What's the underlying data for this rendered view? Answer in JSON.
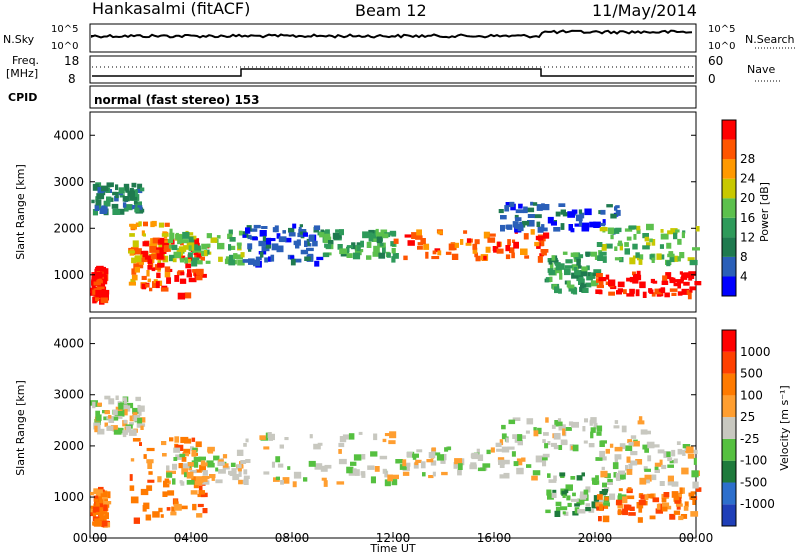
{
  "header": {
    "station": "Hankasalmi (fitACF)",
    "beam": "Beam 12",
    "date": "11/May/2014"
  },
  "noise_panel": {
    "left_label": "N.Sky",
    "right_label": "N.Search",
    "left_ticks": [
      "10^5",
      "10^0"
    ],
    "right_ticks": [
      "10^5",
      "10^0"
    ]
  },
  "freq_panel": {
    "left_label_line1": "Freq.",
    "left_label_line2": "[MHz]",
    "left_ticks": [
      "18",
      "8"
    ],
    "right_label": "Nave",
    "right_ticks": [
      "60",
      "0"
    ]
  },
  "cpid_panel": {
    "label": "CPID",
    "text": "normal (fast stereo) 153"
  },
  "colors": {
    "power": [
      "#0000ff",
      "#2a5fb8",
      "#1f7a4f",
      "#2e9a5a",
      "#5cc04d",
      "#c8c800",
      "#ff9900",
      "#ff5500",
      "#ff0000"
    ],
    "velocity": [
      "#1f3fb8",
      "#2d6fcc",
      "#1e7a3c",
      "#55c040",
      "#c8c8c0",
      "#ff9e30",
      "#ff7a00",
      "#ff4000",
      "#ff0000"
    ]
  },
  "chart_data": [
    {
      "type": "heatmap",
      "name": "power",
      "ylabel": "Slant Range [km]",
      "ylim": [
        200,
        4500
      ],
      "xlim": [
        0,
        24
      ],
      "y_ticks": [
        1000,
        2000,
        3000,
        4000
      ],
      "colorbar_label": "Power [dB]",
      "colorbar_ticks": [
        "4",
        "8",
        "12",
        "16",
        "20",
        "24",
        "28"
      ],
      "regions": [
        {
          "x": [
            0,
            2
          ],
          "y": [
            2400,
            3000
          ],
          "level": 2
        },
        {
          "x": [
            0,
            0.5
          ],
          "y": [
            500,
            1200
          ],
          "level": 8
        },
        {
          "x": [
            1.5,
            3
          ],
          "y": [
            800,
            2200
          ],
          "level": 6
        },
        {
          "x": [
            2,
            4.5
          ],
          "y": [
            600,
            1800
          ],
          "level": 8
        },
        {
          "x": [
            3,
            6
          ],
          "y": [
            1300,
            2000
          ],
          "level": 4
        },
        {
          "x": [
            6,
            9
          ],
          "y": [
            1300,
            2100
          ],
          "level": 1
        },
        {
          "x": [
            9,
            12
          ],
          "y": [
            1400,
            2000
          ],
          "level": 3
        },
        {
          "x": [
            12,
            18
          ],
          "y": [
            1400,
            2000
          ],
          "level": 7
        },
        {
          "x": [
            16,
            21
          ],
          "y": [
            2000,
            2600
          ],
          "level": 1
        },
        {
          "x": [
            18,
            20
          ],
          "y": [
            700,
            1500
          ],
          "level": 3
        },
        {
          "x": [
            20,
            24
          ],
          "y": [
            600,
            1100
          ],
          "level": 8
        },
        {
          "x": [
            20,
            24
          ],
          "y": [
            1300,
            2100
          ],
          "level": 4
        }
      ]
    },
    {
      "type": "heatmap",
      "name": "velocity",
      "ylabel": "Slant Range [km]",
      "xlabel": "Time UT",
      "ylim": [
        200,
        4500
      ],
      "xlim": [
        0,
        24
      ],
      "x_ticks": [
        "00:00",
        "04:00",
        "08:00",
        "12:00",
        "16:00",
        "20:00",
        "00:00"
      ],
      "y_ticks": [
        1000,
        2000,
        3000,
        4000
      ],
      "colorbar_label": "Velocity [m s⁻¹]",
      "colorbar_ticks": [
        "1000",
        "500",
        "100",
        "25",
        "-25",
        "-100",
        "-500",
        "-1000"
      ],
      "regions": [
        {
          "x": [
            0,
            2
          ],
          "y": [
            2300,
            3000
          ],
          "level": 4
        },
        {
          "x": [
            0,
            0.6
          ],
          "y": [
            500,
            1200
          ],
          "level": 6
        },
        {
          "x": [
            1.5,
            4.5
          ],
          "y": [
            600,
            2200
          ],
          "level": 6
        },
        {
          "x": [
            3,
            6
          ],
          "y": [
            1300,
            2000
          ],
          "level": 4
        },
        {
          "x": [
            6,
            12
          ],
          "y": [
            1300,
            2300
          ],
          "level": 4
        },
        {
          "x": [
            12,
            18
          ],
          "y": [
            1400,
            2000
          ],
          "level": 4
        },
        {
          "x": [
            16,
            22
          ],
          "y": [
            2000,
            2600
          ],
          "level": 4
        },
        {
          "x": [
            18,
            21
          ],
          "y": [
            700,
            1500
          ],
          "level": 3
        },
        {
          "x": [
            20,
            24
          ],
          "y": [
            600,
            1200
          ],
          "level": 6
        },
        {
          "x": [
            20,
            24
          ],
          "y": [
            1300,
            2100
          ],
          "level": 4
        }
      ]
    }
  ]
}
